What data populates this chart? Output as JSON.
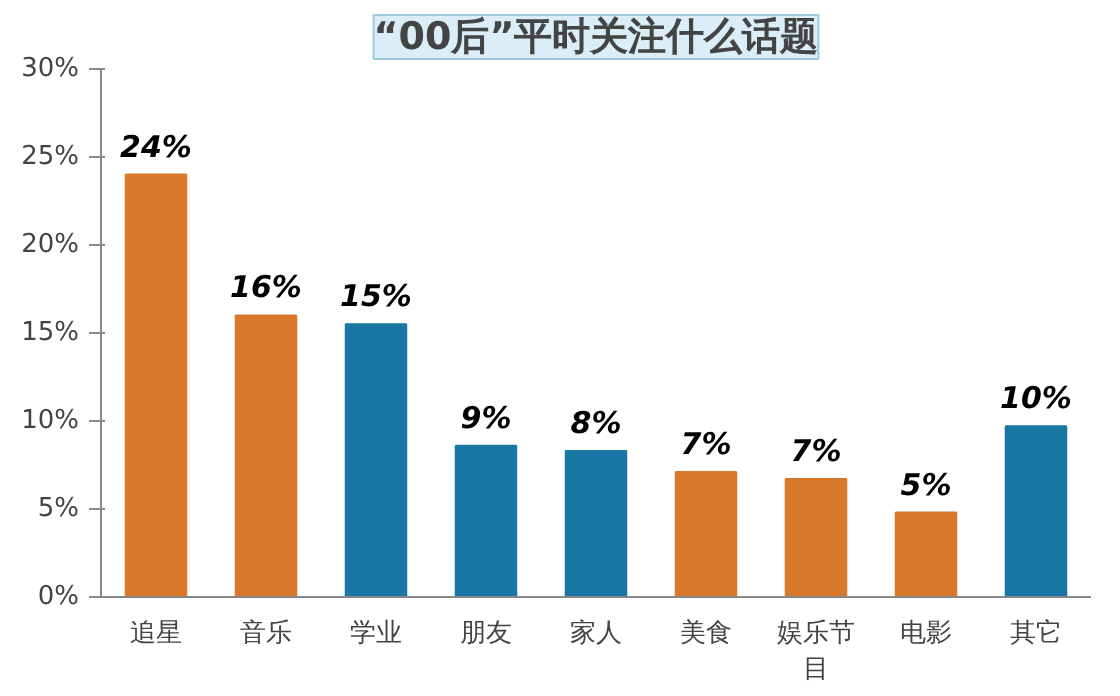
{
  "chart_data": {
    "type": "bar",
    "title": "“00后”平时关注什么话题",
    "categories": [
      "追星",
      "音乐",
      "学业",
      "朋友",
      "家人",
      "美食",
      "娱乐节目",
      "电影",
      "其它"
    ],
    "values": [
      24,
      16,
      15.5,
      8.6,
      8.3,
      7.1,
      6.7,
      4.8,
      9.7
    ],
    "colors": [
      "#d9782a",
      "#d9782a",
      "#1a77a5",
      "#1a77a5",
      "#1a77a5",
      "#d9782a",
      "#d9782a",
      "#d9782a",
      "#1a77a5"
    ],
    "value_labels": [
      "24%",
      "16%",
      "15%",
      "9%",
      "8%",
      "7%",
      "7%",
      "5%",
      "10%"
    ],
    "ylim": [
      0,
      30
    ],
    "yticks": [
      {
        "value": 0,
        "label": "0%"
      },
      {
        "value": 5,
        "label": "5%"
      },
      {
        "value": 10,
        "label": "10%"
      },
      {
        "value": 15,
        "label": "15%"
      },
      {
        "value": 20,
        "label": "20%"
      },
      {
        "value": 25,
        "label": "25%"
      },
      {
        "value": 30,
        "label": "30%"
      }
    ],
    "grid": false
  }
}
